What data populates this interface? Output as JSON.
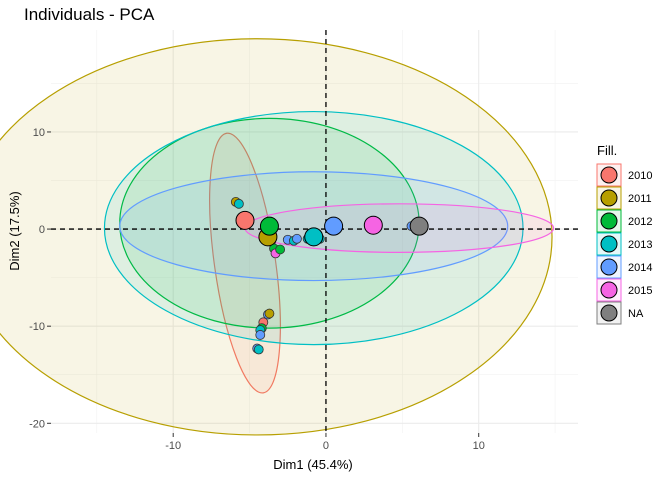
{
  "chart_data": {
    "type": "scatter",
    "title": "Individuals - PCA",
    "xlabel": "Dim1 (45.4%)",
    "ylabel": "Dim2 (17.5%)",
    "xlim": [
      -18,
      16.5
    ],
    "ylim": [
      -21,
      20.5
    ],
    "xticks": [
      -10,
      0,
      10
    ],
    "yticks": [
      -20,
      -10,
      0,
      10
    ],
    "grid": true,
    "reference_lines": {
      "x": 0,
      "y": 0,
      "style": "dashed"
    },
    "legend": {
      "title": "Fill.",
      "placement": "right",
      "entries": [
        "2010",
        "2011",
        "2012",
        "2013",
        "2014",
        "2015",
        "NA"
      ]
    },
    "groups": [
      {
        "label": "2010",
        "color": "#F8766D",
        "centroid": [
          -5.3,
          0.9
        ],
        "ellipse": {
          "center": [
            -5.3,
            -3.5
          ],
          "rx": 2.0,
          "ry": 13.5,
          "angle_deg": -8
        }
      },
      {
        "label": "2011",
        "color": "#B79F00",
        "centroid": [
          -3.8,
          -0.8
        ],
        "ellipse": {
          "center": [
            -4.5,
            -0.8
          ],
          "rx": 19.3,
          "ry": 20.4,
          "angle_deg": 0
        }
      },
      {
        "label": "2012",
        "color": "#00BA38",
        "centroid": [
          -3.7,
          0.3
        ],
        "ellipse": {
          "center": [
            -3.7,
            0.6
          ],
          "rx": 9.8,
          "ry": 10.8,
          "angle_deg": 0
        }
      },
      {
        "label": "2013",
        "color": "#00BFC4",
        "centroid": [
          -0.8,
          -0.8
        ],
        "ellipse": {
          "center": [
            -0.8,
            0.1
          ],
          "rx": 13.7,
          "ry": 12.0,
          "angle_deg": 0
        }
      },
      {
        "label": "2014",
        "color": "#619CFF",
        "centroid": [
          0.5,
          0.3
        ],
        "ellipse": {
          "center": [
            -0.8,
            0.3
          ],
          "rx": 12.7,
          "ry": 5.6,
          "angle_deg": 0
        }
      },
      {
        "label": "2015",
        "color": "#F564E3",
        "centroid": [
          3.1,
          0.4
        ],
        "ellipse": {
          "center": [
            4.8,
            0.1
          ],
          "rx": 10.1,
          "ry": 2.5,
          "angle_deg": 0
        }
      },
      {
        "label": "NA",
        "color": "#7F7F7F",
        "centroid": [
          6.1,
          0.3
        ],
        "ellipse": null
      }
    ],
    "points": [
      {
        "x": -5.9,
        "y": 2.8,
        "group": "2011"
      },
      {
        "x": -5.7,
        "y": 2.6,
        "group": "2013"
      },
      {
        "x": -3.6,
        "y": -1.3,
        "group": "2011"
      },
      {
        "x": -3.4,
        "y": -2.0,
        "group": "2012"
      },
      {
        "x": -3.3,
        "y": -2.5,
        "group": "2015"
      },
      {
        "x": -3.0,
        "y": -2.1,
        "group": "2012"
      },
      {
        "x": -2.5,
        "y": -1.1,
        "group": "2014"
      },
      {
        "x": -2.1,
        "y": -1.2,
        "group": "2013"
      },
      {
        "x": -1.9,
        "y": -1.0,
        "group": "2014"
      },
      {
        "x": -1.2,
        "y": -1.0,
        "group": "2013"
      },
      {
        "x": -0.4,
        "y": -1.0,
        "group": "2013"
      },
      {
        "x": 5.6,
        "y": 0.3,
        "group": "2014"
      },
      {
        "x": 5.9,
        "y": 0.3,
        "group": "2015"
      },
      {
        "x": -3.8,
        "y": -8.8,
        "group": "2014"
      },
      {
        "x": -3.7,
        "y": -8.7,
        "group": "2011"
      },
      {
        "x": -4.1,
        "y": -9.6,
        "group": "2010"
      },
      {
        "x": -4.2,
        "y": -10.2,
        "group": "2012"
      },
      {
        "x": -4.3,
        "y": -10.4,
        "group": "2013"
      },
      {
        "x": -4.3,
        "y": -10.9,
        "group": "2014"
      },
      {
        "x": -4.5,
        "y": -12.3,
        "group": "2014"
      },
      {
        "x": -4.4,
        "y": -12.4,
        "group": "2013"
      }
    ]
  }
}
